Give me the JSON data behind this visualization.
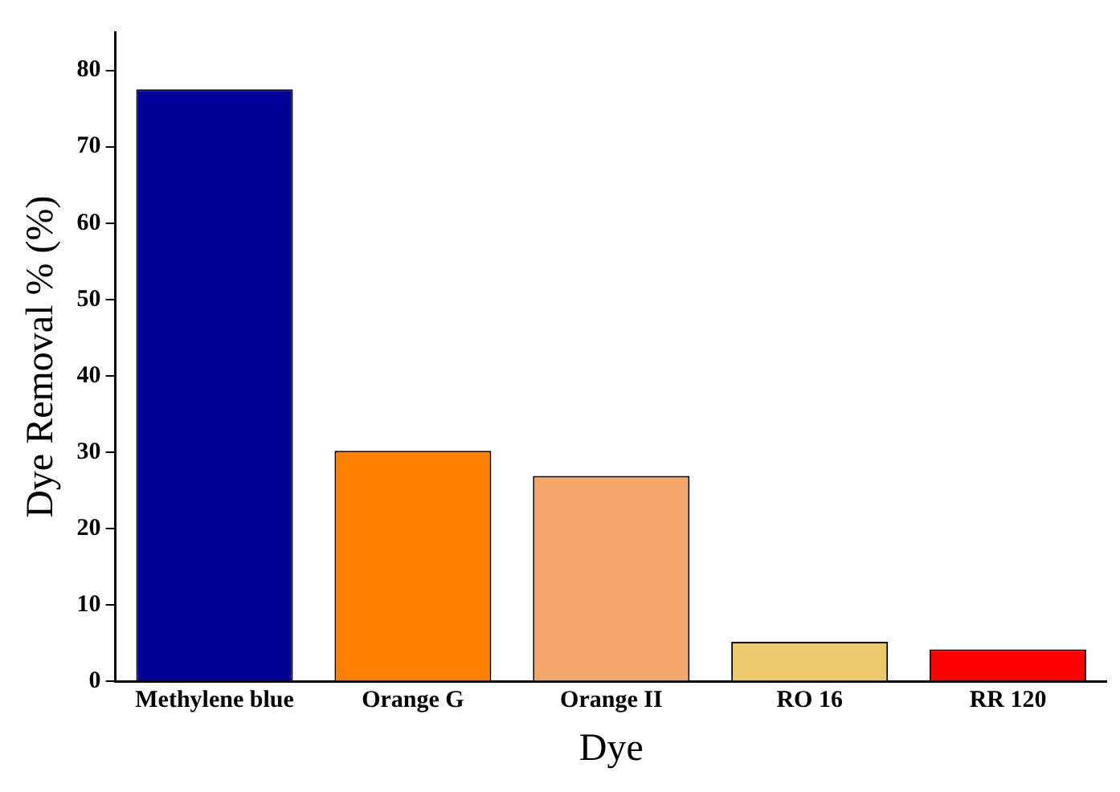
{
  "chart_data": {
    "type": "bar",
    "xlabel": "Dye",
    "ylabel": "Dye Removal % (%)",
    "categories": [
      "Methylene blue",
      "Orange G",
      "Orange II",
      "RO 16",
      "RR 120"
    ],
    "values": [
      77.5,
      30.2,
      26.9,
      5.2,
      4.2
    ],
    "colors": [
      "#000099",
      "#ff7f00",
      "#f4a76a",
      "#edc86c",
      "#ff0000"
    ],
    "ylim": [
      0,
      85
    ],
    "yticks": [
      0,
      10,
      20,
      30,
      40,
      50,
      60,
      70,
      80
    ],
    "grid": false,
    "legend": false
  }
}
